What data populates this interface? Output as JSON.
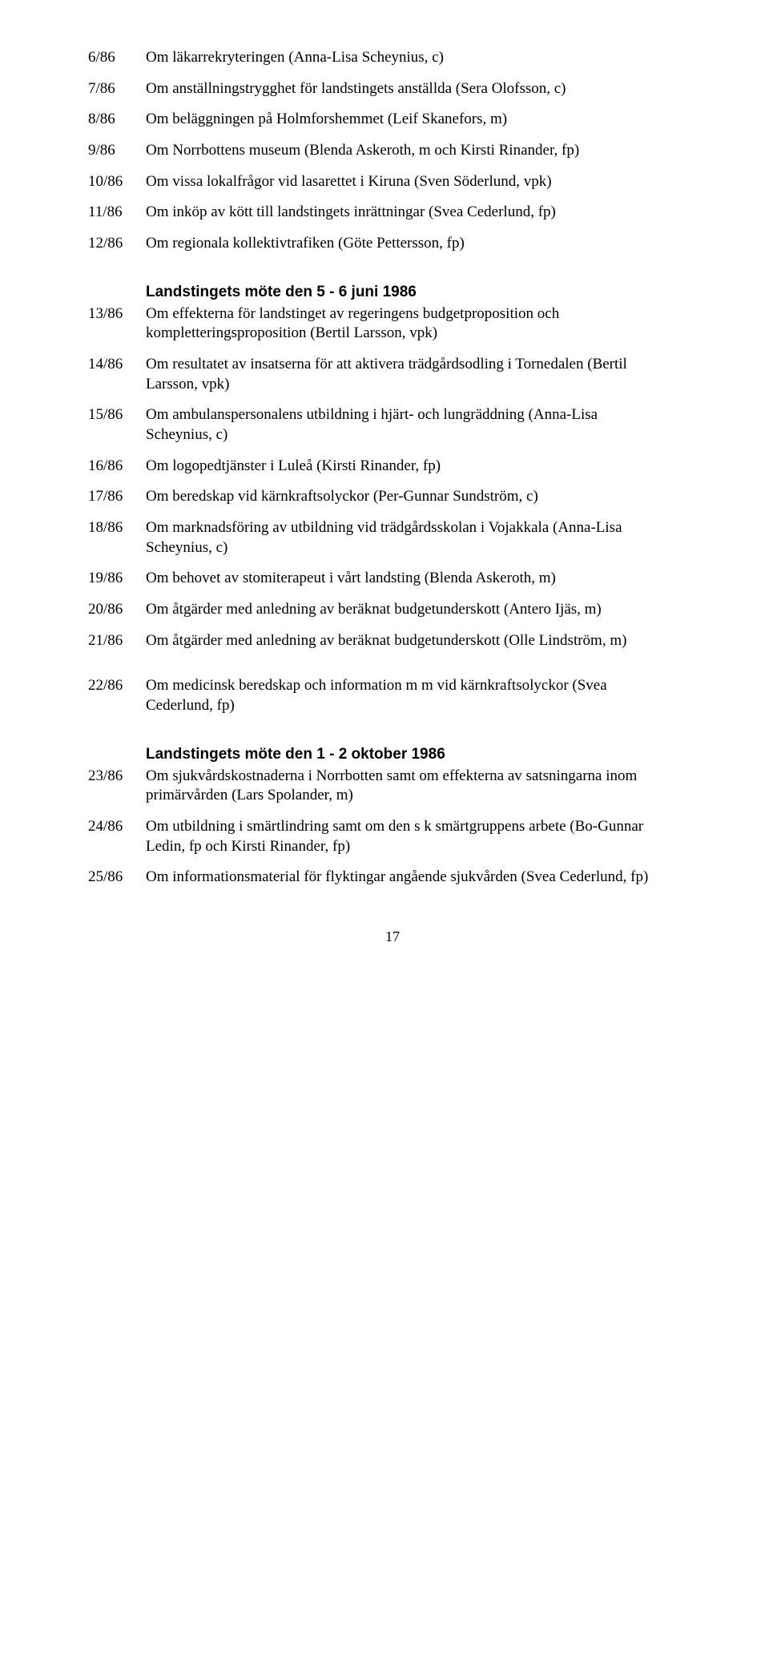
{
  "block1": [
    {
      "num": "6/86",
      "txt": "Om läkarrekryteringen (Anna-Lisa Scheynius, c)"
    },
    {
      "num": "7/86",
      "txt": "Om anställningstrygghet för landstingets anställda (Sera Olofsson, c)"
    },
    {
      "num": "8/86",
      "txt": "Om beläggningen på Holmforshemmet (Leif Skanefors, m)"
    },
    {
      "num": "9/86",
      "txt": "Om Norrbottens museum (Blenda Askeroth, m och Kirsti Rinander, fp)"
    },
    {
      "num": "10/86",
      "txt": "Om vissa lokalfrågor vid lasarettet i Kiruna (Sven Söderlund, vpk)"
    },
    {
      "num": "11/86",
      "txt": "Om inköp av kött till landstingets inrättningar (Svea Cederlund, fp)"
    },
    {
      "num": "12/86",
      "txt": "Om regionala kollektivtrafiken (Göte Pettersson, fp)"
    }
  ],
  "heading2": "Landstingets möte den 5 - 6 juni 1986",
  "block2": [
    {
      "num": "13/86",
      "txt": "Om effekterna för landstinget av regeringens budgetproposition och kompletteringsproposition (Bertil Larsson, vpk)"
    },
    {
      "num": "14/86",
      "txt": "Om resultatet av insatserna för att aktivera trädgårdsodling i Tornedalen (Bertil Larsson, vpk)"
    },
    {
      "num": "15/86",
      "txt": "Om ambulanspersonalens utbildning i hjärt- och lungräddning (Anna-Lisa Scheynius, c)"
    },
    {
      "num": "16/86",
      "txt": "Om logopedtjänster i Luleå (Kirsti Rinander, fp)"
    },
    {
      "num": "17/86",
      "txt": "Om beredskap vid kärnkraftsolyckor (Per-Gunnar Sundström, c)"
    },
    {
      "num": "18/86",
      "txt": "Om marknadsföring av utbildning vid trädgårdsskolan i Vojakkala (Anna-Lisa Scheynius, c)"
    },
    {
      "num": "19/86",
      "txt": "Om behovet av stomiterapeut i vårt landsting (Blenda Askeroth, m)"
    },
    {
      "num": "20/86",
      "txt": "Om åtgärder med anledning av beräknat budgetunderskott (Antero Ijäs, m)"
    },
    {
      "num": "21/86",
      "txt": "Om åtgärder med anledning av beräknat budgetunderskott (Olle Lindström, m)"
    }
  ],
  "block2b": [
    {
      "num": "22/86",
      "txt": "Om medicinsk beredskap och information m m vid kärnkraftsolyckor (Svea Cederlund, fp)"
    }
  ],
  "heading3": "Landstingets möte den 1 - 2 oktober 1986",
  "block3": [
    {
      "num": "23/86",
      "txt": "Om sjukvårdskostnaderna i Norrbotten samt om effekterna av satsningarna inom primärvården (Lars Spolander, m)"
    },
    {
      "num": "24/86",
      "txt": "Om utbildning i smärtlindring samt om den s k smärtgruppens arbete (Bo-Gunnar Ledin, fp och Kirsti Rinander, fp)"
    },
    {
      "num": "25/86",
      "txt": "Om informationsmaterial för flyktingar angående sjukvården (Svea Cederlund, fp)"
    }
  ],
  "pagenum": "17"
}
